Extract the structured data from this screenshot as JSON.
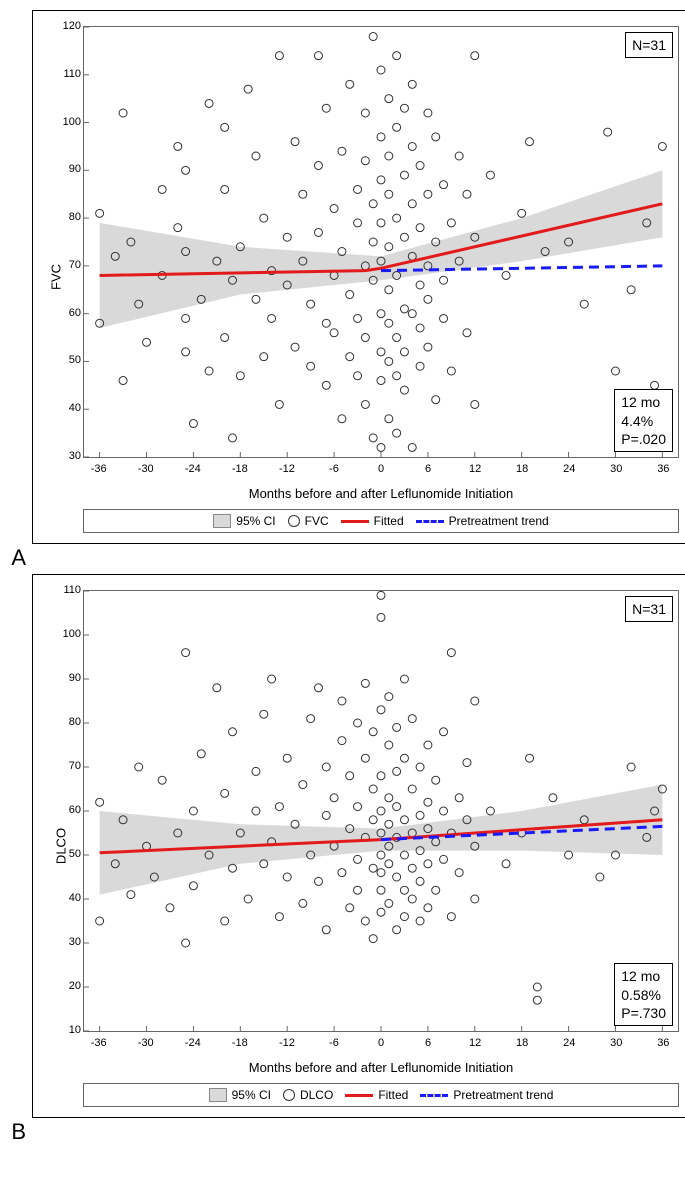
{
  "panelA": {
    "label": "A",
    "type": "scatter-with-fit",
    "ylabel": "FVC",
    "xlabel": "Months before and after Leflunomide Initiation",
    "n_label": "N=31",
    "stats_box": [
      "12 mo",
      "4.4%",
      "P=.020"
    ],
    "xlim": [
      -38,
      38
    ],
    "ylim": [
      30,
      120
    ],
    "xticks": [
      -36,
      -30,
      -24,
      -18,
      -12,
      -6,
      0,
      6,
      12,
      18,
      24,
      30,
      36
    ],
    "yticks": [
      30,
      40,
      50,
      60,
      70,
      80,
      90,
      100,
      110,
      120
    ],
    "background_color": "#ffffff",
    "ci_color": "#d9d9d9",
    "fitted_color": "#e31a1c",
    "pretrend_color": "#1a1aff",
    "point_stroke": "#333333",
    "fitted_points": [
      [
        -36,
        68
      ],
      [
        -2,
        69
      ],
      [
        0,
        69.5
      ],
      [
        36,
        83
      ]
    ],
    "pretrend_points": [
      [
        0,
        69
      ],
      [
        36,
        70
      ]
    ],
    "ci_upper": [
      [
        -36,
        79
      ],
      [
        -18,
        74
      ],
      [
        0,
        72
      ],
      [
        18,
        80
      ],
      [
        36,
        90
      ]
    ],
    "ci_lower": [
      [
        -36,
        57
      ],
      [
        -18,
        64
      ],
      [
        0,
        67
      ],
      [
        18,
        71
      ],
      [
        36,
        76
      ]
    ],
    "legend": {
      "ci": "95% CI",
      "marker": "FVC",
      "fitted": "Fitted",
      "pretrend": "Pretreatment trend"
    },
    "scatter": [
      [
        -36,
        81
      ],
      [
        -36,
        58
      ],
      [
        -34,
        72
      ],
      [
        -33,
        102
      ],
      [
        -33,
        46
      ],
      [
        -32,
        75
      ],
      [
        -31,
        62
      ],
      [
        -30,
        54
      ],
      [
        -28,
        68
      ],
      [
        -28,
        86
      ],
      [
        -26,
        95
      ],
      [
        -26,
        78
      ],
      [
        -25,
        73
      ],
      [
        -25,
        52
      ],
      [
        -25,
        59
      ],
      [
        -25,
        90
      ],
      [
        -24,
        37
      ],
      [
        -23,
        63
      ],
      [
        -22,
        48
      ],
      [
        -22,
        104
      ],
      [
        -21,
        71
      ],
      [
        -20,
        99
      ],
      [
        -20,
        55
      ],
      [
        -20,
        86
      ],
      [
        -19,
        34
      ],
      [
        -19,
        67
      ],
      [
        -18,
        74
      ],
      [
        -18,
        47
      ],
      [
        -17,
        107
      ],
      [
        -16,
        93
      ],
      [
        -16,
        63
      ],
      [
        -15,
        80
      ],
      [
        -15,
        51
      ],
      [
        -14,
        69
      ],
      [
        -14,
        59
      ],
      [
        -13,
        114
      ],
      [
        -13,
        41
      ],
      [
        -12,
        76
      ],
      [
        -12,
        66
      ],
      [
        -11,
        96
      ],
      [
        -11,
        53
      ],
      [
        -10,
        85
      ],
      [
        -10,
        71
      ],
      [
        -9,
        62
      ],
      [
        -9,
        49
      ],
      [
        -8,
        114
      ],
      [
        -8,
        77
      ],
      [
        -8,
        91
      ],
      [
        -7,
        58
      ],
      [
        -7,
        103
      ],
      [
        -7,
        45
      ],
      [
        -6,
        68
      ],
      [
        -6,
        82
      ],
      [
        -6,
        56
      ],
      [
        -5,
        94
      ],
      [
        -5,
        73
      ],
      [
        -5,
        38
      ],
      [
        -4,
        108
      ],
      [
        -4,
        64
      ],
      [
        -4,
        51
      ],
      [
        -3,
        86
      ],
      [
        -3,
        79
      ],
      [
        -3,
        59
      ],
      [
        -3,
        47
      ],
      [
        -2,
        92
      ],
      [
        -2,
        70
      ],
      [
        -2,
        55
      ],
      [
        -2,
        102
      ],
      [
        -2,
        41
      ],
      [
        -1,
        118
      ],
      [
        -1,
        83
      ],
      [
        -1,
        67
      ],
      [
        -1,
        34
      ],
      [
        -1,
        75
      ],
      [
        0,
        97
      ],
      [
        0,
        88
      ],
      [
        0,
        60
      ],
      [
        0,
        52
      ],
      [
        0,
        71
      ],
      [
        0,
        46
      ],
      [
        0,
        111
      ],
      [
        0,
        79
      ],
      [
        0,
        32
      ],
      [
        1,
        85
      ],
      [
        1,
        65
      ],
      [
        1,
        50
      ],
      [
        1,
        93
      ],
      [
        1,
        38
      ],
      [
        1,
        105
      ],
      [
        1,
        74
      ],
      [
        1,
        58
      ],
      [
        2,
        99
      ],
      [
        2,
        80
      ],
      [
        2,
        47
      ],
      [
        2,
        68
      ],
      [
        2,
        114
      ],
      [
        2,
        55
      ],
      [
        2,
        35
      ],
      [
        3,
        89
      ],
      [
        3,
        61
      ],
      [
        3,
        76
      ],
      [
        3,
        44
      ],
      [
        3,
        103
      ],
      [
        3,
        52
      ],
      [
        4,
        72
      ],
      [
        4,
        95
      ],
      [
        4,
        60
      ],
      [
        4,
        83
      ],
      [
        4,
        32
      ],
      [
        4,
        108
      ],
      [
        5,
        66
      ],
      [
        5,
        78
      ],
      [
        5,
        49
      ],
      [
        5,
        91
      ],
      [
        5,
        57
      ],
      [
        6,
        102
      ],
      [
        6,
        70
      ],
      [
        6,
        85
      ],
      [
        6,
        53
      ],
      [
        6,
        63
      ],
      [
        7,
        75
      ],
      [
        7,
        42
      ],
      [
        7,
        97
      ],
      [
        8,
        87
      ],
      [
        8,
        59
      ],
      [
        8,
        67
      ],
      [
        9,
        79
      ],
      [
        9,
        48
      ],
      [
        10,
        93
      ],
      [
        10,
        71
      ],
      [
        11,
        85
      ],
      [
        11,
        56
      ],
      [
        12,
        114
      ],
      [
        12,
        76
      ],
      [
        12,
        41
      ],
      [
        14,
        89
      ],
      [
        16,
        68
      ],
      [
        18,
        81
      ],
      [
        19,
        96
      ],
      [
        21,
        73
      ],
      [
        24,
        75
      ],
      [
        26,
        62
      ],
      [
        29,
        98
      ],
      [
        30,
        48
      ],
      [
        32,
        65
      ],
      [
        34,
        79
      ],
      [
        35,
        45
      ],
      [
        36,
        95
      ]
    ]
  },
  "panelB": {
    "label": "B",
    "type": "scatter-with-fit",
    "ylabel": "DLCO",
    "xlabel": "Months before and after Leflunomide Initiation",
    "n_label": "N=31",
    "stats_box": [
      "12 mo",
      "0.58%",
      "P=.730"
    ],
    "xlim": [
      -38,
      38
    ],
    "ylim": [
      10,
      110
    ],
    "xticks": [
      -36,
      -30,
      -24,
      -18,
      -12,
      -6,
      0,
      6,
      12,
      18,
      24,
      30,
      36
    ],
    "yticks": [
      10,
      20,
      30,
      40,
      50,
      60,
      70,
      80,
      90,
      100,
      110
    ],
    "background_color": "#ffffff",
    "ci_color": "#d9d9d9",
    "fitted_color": "#e31a1c",
    "pretrend_color": "#1a1aff",
    "point_stroke": "#333333",
    "fitted_points": [
      [
        -36,
        50.5
      ],
      [
        0,
        53.5
      ],
      [
        36,
        58
      ]
    ],
    "pretrend_points": [
      [
        0,
        53.5
      ],
      [
        36,
        56.5
      ]
    ],
    "ci_upper": [
      [
        -36,
        60
      ],
      [
        -18,
        57
      ],
      [
        0,
        56
      ],
      [
        18,
        60
      ],
      [
        36,
        66
      ]
    ],
    "ci_lower": [
      [
        -36,
        41
      ],
      [
        -18,
        48
      ],
      [
        0,
        51
      ],
      [
        18,
        51
      ],
      [
        36,
        50
      ]
    ],
    "legend": {
      "ci": "95% CI",
      "marker": "DLCO",
      "fitted": "Fitted",
      "pretrend": "Pretreatment trend"
    },
    "scatter": [
      [
        -36,
        62
      ],
      [
        -36,
        35
      ],
      [
        -34,
        48
      ],
      [
        -33,
        58
      ],
      [
        -32,
        41
      ],
      [
        -31,
        70
      ],
      [
        -30,
        52
      ],
      [
        -29,
        45
      ],
      [
        -28,
        67
      ],
      [
        -27,
        38
      ],
      [
        -26,
        55
      ],
      [
        -25,
        96
      ],
      [
        -25,
        30
      ],
      [
        -24,
        60
      ],
      [
        -24,
        43
      ],
      [
        -23,
        73
      ],
      [
        -22,
        50
      ],
      [
        -21,
        88
      ],
      [
        -20,
        35
      ],
      [
        -20,
        64
      ],
      [
        -19,
        47
      ],
      [
        -19,
        78
      ],
      [
        -18,
        55
      ],
      [
        -17,
        40
      ],
      [
        -16,
        69
      ],
      [
        -16,
        60
      ],
      [
        -15,
        48
      ],
      [
        -15,
        82
      ],
      [
        -14,
        90
      ],
      [
        -14,
        53
      ],
      [
        -13,
        36
      ],
      [
        -13,
        61
      ],
      [
        -12,
        45
      ],
      [
        -12,
        72
      ],
      [
        -11,
        57
      ],
      [
        -10,
        39
      ],
      [
        -10,
        66
      ],
      [
        -9,
        50
      ],
      [
        -9,
        81
      ],
      [
        -8,
        88
      ],
      [
        -8,
        44
      ],
      [
        -7,
        59
      ],
      [
        -7,
        70
      ],
      [
        -7,
        33
      ],
      [
        -6,
        52
      ],
      [
        -6,
        63
      ],
      [
        -5,
        46
      ],
      [
        -5,
        76
      ],
      [
        -5,
        85
      ],
      [
        -4,
        38
      ],
      [
        -4,
        56
      ],
      [
        -4,
        68
      ],
      [
        -3,
        49
      ],
      [
        -3,
        61
      ],
      [
        -3,
        42
      ],
      [
        -3,
        80
      ],
      [
        -2,
        54
      ],
      [
        -2,
        35
      ],
      [
        -2,
        72
      ],
      [
        -2,
        89
      ],
      [
        -1,
        47
      ],
      [
        -1,
        58
      ],
      [
        -1,
        65
      ],
      [
        -1,
        31
      ],
      [
        -1,
        78
      ],
      [
        0,
        50
      ],
      [
        0,
        42
      ],
      [
        0,
        60
      ],
      [
        0,
        68
      ],
      [
        0,
        37
      ],
      [
        0,
        83
      ],
      [
        0,
        104
      ],
      [
        0,
        109
      ],
      [
        0,
        55
      ],
      [
        0,
        46
      ],
      [
        1,
        52
      ],
      [
        1,
        63
      ],
      [
        1,
        39
      ],
      [
        1,
        75
      ],
      [
        1,
        48
      ],
      [
        1,
        57
      ],
      [
        1,
        86
      ],
      [
        2,
        45
      ],
      [
        2,
        69
      ],
      [
        2,
        54
      ],
      [
        2,
        33
      ],
      [
        2,
        61
      ],
      [
        2,
        79
      ],
      [
        3,
        50
      ],
      [
        3,
        42
      ],
      [
        3,
        72
      ],
      [
        3,
        90
      ],
      [
        3,
        58
      ],
      [
        3,
        36
      ],
      [
        4,
        65
      ],
      [
        4,
        47
      ],
      [
        4,
        55
      ],
      [
        4,
        81
      ],
      [
        4,
        40
      ],
      [
        5,
        59
      ],
      [
        5,
        51
      ],
      [
        5,
        70
      ],
      [
        5,
        44
      ],
      [
        5,
        35
      ],
      [
        6,
        62
      ],
      [
        6,
        48
      ],
      [
        6,
        56
      ],
      [
        6,
        75
      ],
      [
        6,
        38
      ],
      [
        7,
        53
      ],
      [
        7,
        67
      ],
      [
        7,
        42
      ],
      [
        8,
        60
      ],
      [
        8,
        49
      ],
      [
        8,
        78
      ],
      [
        9,
        55
      ],
      [
        9,
        36
      ],
      [
        9,
        96
      ],
      [
        10,
        63
      ],
      [
        10,
        46
      ],
      [
        11,
        58
      ],
      [
        11,
        71
      ],
      [
        12,
        52
      ],
      [
        12,
        40
      ],
      [
        12,
        85
      ],
      [
        14,
        60
      ],
      [
        16,
        48
      ],
      [
        18,
        55
      ],
      [
        19,
        72
      ],
      [
        20,
        20
      ],
      [
        20,
        17
      ],
      [
        22,
        63
      ],
      [
        24,
        50
      ],
      [
        26,
        58
      ],
      [
        28,
        45
      ],
      [
        30,
        50
      ],
      [
        32,
        70
      ],
      [
        34,
        54
      ],
      [
        35,
        60
      ],
      [
        36,
        65
      ]
    ]
  }
}
